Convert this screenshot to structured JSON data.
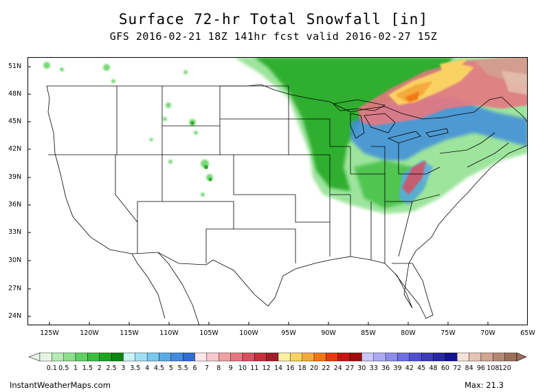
{
  "title": "Surface 72-hr Total Snowfall [in]",
  "subtitle": "GFS 2016-02-21 18Z 141hr fcst valid 2016-02-27 15Z",
  "lat_labels": [
    "51N",
    "48N",
    "45N",
    "42N",
    "39N",
    "36N",
    "33N",
    "30N",
    "27N",
    "24N"
  ],
  "lon_labels": [
    "125W",
    "120W",
    "115W",
    "110W",
    "105W",
    "100W",
    "95W",
    "90W",
    "85W",
    "80W",
    "75W",
    "70W",
    "65W"
  ],
  "colorbar": {
    "labels": [
      "0.1",
      "0.5",
      "1",
      "1.5",
      "2",
      "2.5",
      "3",
      "3.5",
      "4",
      "4.5",
      "5",
      "5.5",
      "6",
      "7",
      "8",
      "9",
      "10",
      "11",
      "12",
      "14",
      "16",
      "18",
      "20",
      "22",
      "24",
      "27",
      "30",
      "33",
      "36",
      "39",
      "42",
      "45",
      "48",
      "60",
      "72",
      "84",
      "96",
      "108",
      "120"
    ],
    "colors": [
      "#e6f5e6",
      "#b4ecb4",
      "#8ce08c",
      "#5fd25f",
      "#3cbe3c",
      "#1ea51e",
      "#0b870b",
      "#c8f5f5",
      "#a0e1f5",
      "#78c8f0",
      "#5aaae6",
      "#418cdc",
      "#2d6ed2",
      "#ffe6eb",
      "#fac8cd",
      "#f0a0a5",
      "#e67882",
      "#d7505f",
      "#c3323c",
      "#a01e28",
      "#fff0a0",
      "#fad264",
      "#f5aa3c",
      "#f07814",
      "#e63c0a",
      "#c81414",
      "#a00a0a",
      "#c8c8ff",
      "#aaaaf5",
      "#8c8ceb",
      "#6e6ee1",
      "#5050cd",
      "#3c3cb9",
      "#2828a0",
      "#14148c",
      "#f5e1d7",
      "#e6c3b4",
      "#d2a591",
      "#b48773",
      "#9b6e5a"
    ]
  },
  "footer": {
    "source": "InstantWeatherMaps.com",
    "max_label": "Max:  21.3"
  }
}
